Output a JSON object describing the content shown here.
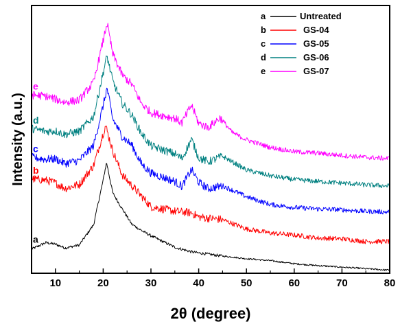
{
  "chart_data": {
    "type": "line",
    "xlabel": "2θ (degree)",
    "ylabel": "Intensity (a.u.)",
    "xlim": [
      5,
      80
    ],
    "x_ticks": [
      10,
      20,
      30,
      40,
      50,
      60,
      70,
      80
    ],
    "y_ticks_shown": false,
    "grid": false,
    "legend_position": "top-right",
    "series": [
      {
        "letter": "a",
        "name": "Untreated",
        "color": "#000000",
        "x": [
          5,
          8,
          10,
          12,
          15,
          18,
          20,
          20.7,
          22,
          24,
          26,
          28,
          30,
          35,
          38.5,
          40,
          45,
          50,
          55,
          60,
          65,
          70,
          75,
          80
        ],
        "y": [
          63,
          80,
          76,
          66,
          74,
          127,
          244,
          290,
          210,
          168,
          128,
          112,
          98,
          68,
          56,
          53,
          45,
          38,
          33,
          25,
          20,
          16,
          12,
          8
        ]
      },
      {
        "letter": "b",
        "name": "GS-04",
        "color": "#ff0000",
        "x": [
          5,
          8,
          10,
          12,
          15,
          18,
          20,
          20.5,
          22,
          24,
          26,
          28,
          30,
          35,
          38.5,
          40,
          45,
          50,
          55,
          60,
          65,
          70,
          75,
          80
        ],
        "y": [
          247,
          243,
          236,
          222,
          232,
          282,
          366,
          386,
          320,
          257,
          229,
          202,
          174,
          162,
          158,
          147,
          140,
          116,
          105,
          100,
          92,
          90,
          83,
          83
        ]
      },
      {
        "letter": "c",
        "name": "GS-05",
        "color": "#0000ff",
        "x": [
          5,
          8,
          10,
          12,
          15,
          18,
          20,
          20.8,
          22,
          24,
          26,
          28,
          30,
          35,
          36.5,
          38.5,
          40,
          42,
          45,
          50,
          55,
          60,
          65,
          70,
          75,
          80
        ],
        "y": [
          303,
          298,
          299,
          287,
          295,
          334,
          439,
          484,
          403,
          357,
          335,
          286,
          262,
          240,
          227,
          271,
          238,
          221,
          229,
          200,
          180,
          172,
          168,
          166,
          162,
          160
        ]
      },
      {
        "letter": "d",
        "name": "GS-06",
        "color": "#008080",
        "x": [
          5,
          8,
          10,
          12,
          15,
          18,
          20,
          20.8,
          22,
          24,
          26,
          28,
          30,
          35,
          36.5,
          38.5,
          40,
          42,
          45,
          50,
          55,
          60,
          65,
          70,
          75,
          80
        ],
        "y": [
          378,
          371,
          372,
          363,
          371,
          410,
          525,
          568,
          502,
          444,
          414,
          366,
          333,
          312,
          300,
          350,
          302,
          291,
          306,
          270,
          255,
          245,
          240,
          236,
          231,
          228
        ]
      },
      {
        "letter": "e",
        "name": "GS-07",
        "color": "#ff00ff",
        "x": [
          5,
          8,
          10,
          12,
          15,
          18,
          20,
          20.8,
          22,
          24,
          26,
          28,
          30,
          35,
          36.5,
          38.5,
          40,
          42,
          44.5,
          47,
          50,
          55,
          60,
          65,
          70,
          75,
          80
        ],
        "y": [
          466,
          463,
          455,
          447,
          453,
          499,
          608,
          655,
          573,
          518,
          494,
          444,
          420,
          405,
          393,
          440,
          392,
          381,
          407,
          368,
          349,
          329,
          318,
          314,
          308,
          303,
          300
        ]
      }
    ]
  }
}
